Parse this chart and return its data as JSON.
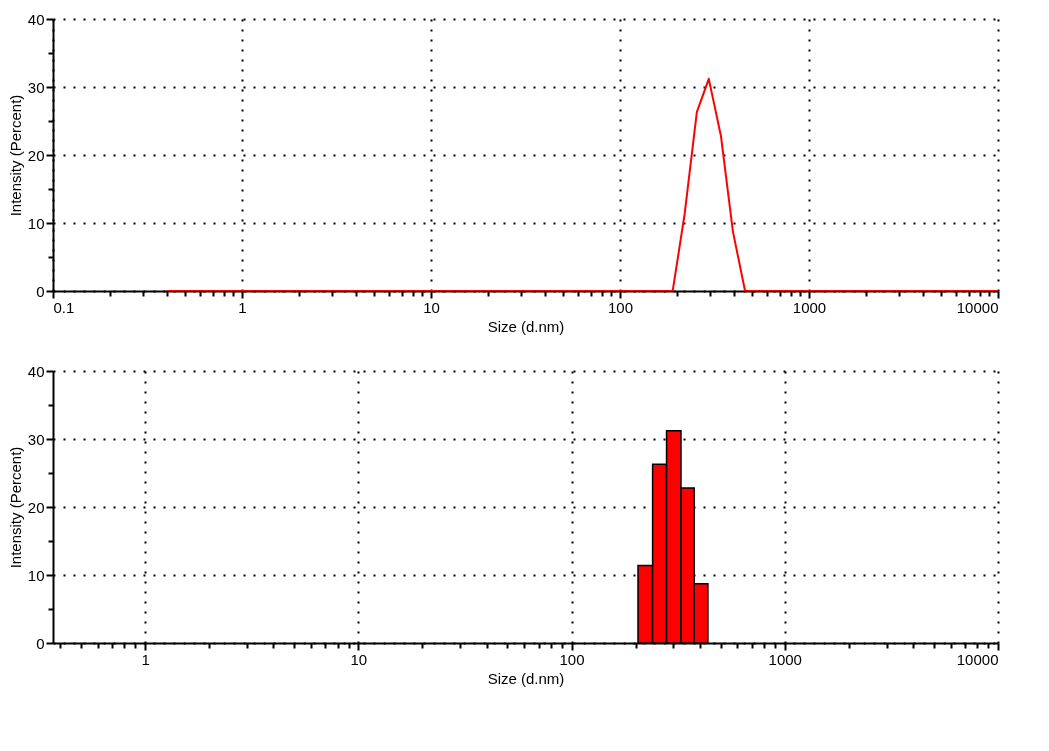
{
  "chart_data": [
    {
      "type": "line",
      "xlabel": "Size (d.nm)",
      "ylabel": "Intensity (Percent)",
      "log": "x",
      "grid": true,
      "x": [
        0.4,
        190,
        220,
        255,
        295,
        342,
        396,
        459,
        10000
      ],
      "series": [
        {
          "color": "#ff0000",
          "values": [
            0,
            0,
            11.4,
            26.3,
            31.2,
            22.8,
            8.7,
            0,
            0
          ]
        }
      ],
      "xlim": [
        0.1,
        10000
      ],
      "xticks": [
        {
          "value": 0.1,
          "label": "0.1"
        },
        {
          "value": 0.2,
          "label": null
        },
        {
          "value": 0.3,
          "label": null
        },
        {
          "value": 0.4,
          "label": null
        },
        {
          "value": 0.5,
          "label": null
        },
        {
          "value": 0.6,
          "label": null
        },
        {
          "value": 0.7,
          "label": null
        },
        {
          "value": 0.8,
          "label": null
        },
        {
          "value": 0.9,
          "label": null
        },
        1,
        {
          "value": 2,
          "label": null
        },
        {
          "value": 3,
          "label": null
        },
        {
          "value": 4,
          "label": null
        },
        {
          "value": 5,
          "label": null
        },
        {
          "value": 6,
          "label": null
        },
        {
          "value": 7,
          "label": null
        },
        {
          "value": 8,
          "label": null
        },
        {
          "value": 9,
          "label": null
        },
        10,
        {
          "value": 20,
          "label": null
        },
        {
          "value": 30,
          "label": null
        },
        {
          "value": 40,
          "label": null
        },
        {
          "value": 50,
          "label": null
        },
        {
          "value": 60,
          "label": null
        },
        {
          "value": 70,
          "label": null
        },
        {
          "value": 80,
          "label": null
        },
        {
          "value": 90,
          "label": null
        },
        100,
        {
          "value": 200,
          "label": null
        },
        {
          "value": 300,
          "label": null
        },
        {
          "value": 400,
          "label": null
        },
        {
          "value": 500,
          "label": null
        },
        {
          "value": 600,
          "label": null
        },
        {
          "value": 700,
          "label": null
        },
        {
          "value": 800,
          "label": null
        },
        {
          "value": 900,
          "label": null
        },
        1000,
        {
          "value": 2000,
          "label": null
        },
        {
          "value": 3000,
          "label": null
        },
        {
          "value": 4000,
          "label": null
        },
        {
          "value": 5000,
          "label": null
        },
        {
          "value": 6000,
          "label": null
        },
        {
          "value": 7000,
          "label": null
        },
        {
          "value": 8000,
          "label": null
        },
        {
          "value": 9000,
          "label": null
        },
        10000
      ],
      "ylim": [
        0,
        40
      ],
      "yticks": [
        0,
        {
          "value": 5,
          "label": null
        },
        10,
        {
          "value": 15,
          "label": null
        },
        20,
        {
          "value": 25,
          "label": null
        },
        30,
        {
          "value": 35,
          "label": null
        },
        40
      ]
    },
    {
      "type": "histogram",
      "xlabel": "Size (d.nm)",
      "ylabel": "Intensity (Percent)",
      "log": "x",
      "grid": true,
      "color": "#ff0000",
      "bins": [
        205,
        240,
        279,
        326,
        376,
        436
      ],
      "values": [
        11.4,
        26.3,
        31.2,
        22.8,
        8.7
      ],
      "xlim": [
        0.37,
        10000
      ],
      "xticks": [
        {
          "value": 0.4,
          "label": null
        },
        {
          "value": 0.5,
          "label": null
        },
        {
          "value": 0.6,
          "label": null
        },
        {
          "value": 0.7,
          "label": null
        },
        {
          "value": 0.8,
          "label": null
        },
        {
          "value": 0.9,
          "label": null
        },
        1,
        {
          "value": 2,
          "label": null
        },
        {
          "value": 3,
          "label": null
        },
        {
          "value": 4,
          "label": null
        },
        {
          "value": 5,
          "label": null
        },
        {
          "value": 6,
          "label": null
        },
        {
          "value": 7,
          "label": null
        },
        {
          "value": 8,
          "label": null
        },
        {
          "value": 9,
          "label": null
        },
        10,
        {
          "value": 20,
          "label": null
        },
        {
          "value": 30,
          "label": null
        },
        {
          "value": 40,
          "label": null
        },
        {
          "value": 50,
          "label": null
        },
        {
          "value": 60,
          "label": null
        },
        {
          "value": 70,
          "label": null
        },
        {
          "value": 80,
          "label": null
        },
        {
          "value": 90,
          "label": null
        },
        100,
        {
          "value": 200,
          "label": null
        },
        {
          "value": 300,
          "label": null
        },
        {
          "value": 400,
          "label": null
        },
        {
          "value": 500,
          "label": null
        },
        {
          "value": 600,
          "label": null
        },
        {
          "value": 700,
          "label": null
        },
        {
          "value": 800,
          "label": null
        },
        {
          "value": 900,
          "label": null
        },
        1000,
        {
          "value": 2000,
          "label": null
        },
        {
          "value": 3000,
          "label": null
        },
        {
          "value": 4000,
          "label": null
        },
        {
          "value": 5000,
          "label": null
        },
        {
          "value": 6000,
          "label": null
        },
        {
          "value": 7000,
          "label": null
        },
        {
          "value": 8000,
          "label": null
        },
        {
          "value": 9000,
          "label": null
        },
        10000
      ],
      "ylim": [
        0,
        40
      ],
      "yticks": [
        0,
        {
          "value": 5,
          "label": null
        },
        10,
        {
          "value": 15,
          "label": null
        },
        20,
        {
          "value": 25,
          "label": null
        },
        30,
        {
          "value": 35,
          "label": null
        },
        40
      ]
    }
  ]
}
